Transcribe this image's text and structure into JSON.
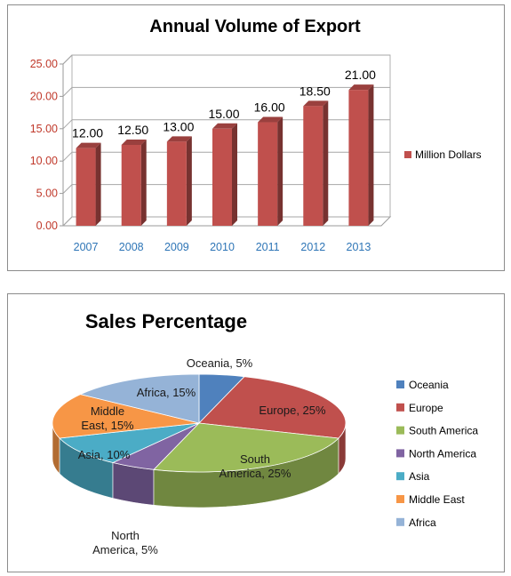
{
  "chart_data": [
    {
      "type": "bar",
      "title": "Annual Volume of Export",
      "categories": [
        "2007",
        "2008",
        "2009",
        "2010",
        "2011",
        "2012",
        "2013"
      ],
      "series": [
        {
          "name": "Million Dollars",
          "values": [
            12,
            12.5,
            13,
            15,
            16,
            18.5,
            21
          ],
          "color": "#c0504d"
        }
      ],
      "data_labels": [
        "12.00",
        "12.50",
        "13.00",
        "15.00",
        "16.00",
        "18.50",
        "21.00"
      ],
      "yticks": [
        "0.00",
        "5.00",
        "10.00",
        "15.00",
        "20.00",
        "25.00"
      ],
      "ylim": [
        0,
        25
      ],
      "three_d": true,
      "grid": true,
      "legend": "right"
    },
    {
      "type": "pie",
      "title": "Sales Percentage",
      "three_d": true,
      "legend": "right",
      "slices": [
        {
          "name": "Oceania",
          "value": 5,
          "label": "Oceania, 5%",
          "color": "#4f81bd"
        },
        {
          "name": "Europe",
          "value": 25,
          "label": "Europe, 25%",
          "color": "#c0504d"
        },
        {
          "name": "South America",
          "value": 25,
          "label": "South America, 25%",
          "color": "#9bbb59"
        },
        {
          "name": "North America",
          "value": 5,
          "label": "North America, 5%",
          "color": "#8064a2"
        },
        {
          "name": "Asia",
          "value": 10,
          "label": "Asia, 10%",
          "color": "#4bacc6"
        },
        {
          "name": "Middle East",
          "value": 15,
          "label": "Middle East, 15%",
          "color": "#f79646"
        },
        {
          "name": "Africa",
          "value": 15,
          "label": "Africa, 15%",
          "color": "#95b3d7"
        }
      ]
    }
  ]
}
